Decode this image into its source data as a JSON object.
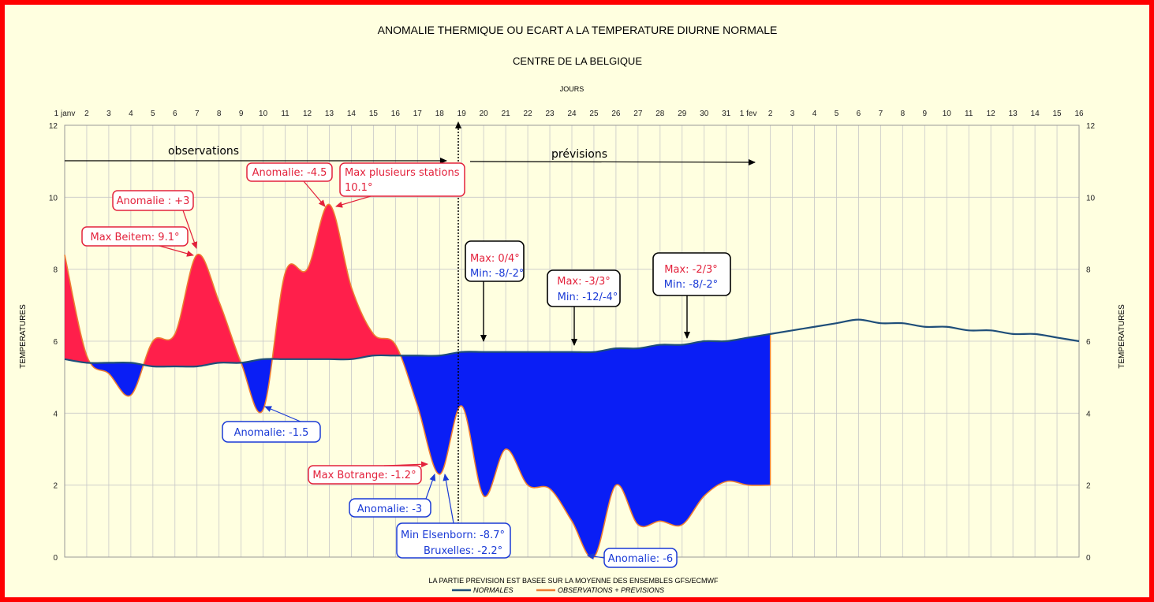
{
  "chart_data": {
    "type": "area",
    "title": "ANOMALIE THERMIQUE OU ECART A LA TEMPERATURE DIURNE NORMALE",
    "subtitle": "CENTRE DE LA BELGIQUE",
    "xlabel": "JOURS",
    "ylabel": "TEMPERATURES",
    "ylim": [
      0,
      12
    ],
    "yticks": [
      0,
      2,
      4,
      6,
      8,
      10,
      12
    ],
    "grid": true,
    "legend_position": "bottom",
    "x_ticks": [
      "1 janv",
      "2",
      "3",
      "4",
      "5",
      "6",
      "7",
      "8",
      "9",
      "10",
      "11",
      "12",
      "13",
      "14",
      "15",
      "16",
      "17",
      "18",
      "19",
      "20",
      "21",
      "22",
      "23",
      "24",
      "25",
      "26",
      "27",
      "28",
      "29",
      "30",
      "31",
      "1 fev",
      "2",
      "3",
      "4",
      "5",
      "6",
      "7",
      "8",
      "9",
      "10",
      "11",
      "12",
      "13",
      "14",
      "15",
      "16"
    ],
    "series": [
      {
        "name": "NORMALES",
        "color": "#1f4e79",
        "x": [
          1,
          2,
          3,
          4,
          5,
          6,
          7,
          8,
          9,
          10,
          11,
          12,
          13,
          14,
          15,
          16,
          17,
          18,
          19,
          20,
          21,
          22,
          23,
          24,
          25,
          26,
          27,
          28,
          29,
          30,
          31,
          32,
          33,
          34,
          35,
          36,
          37,
          38,
          39,
          40,
          41,
          42,
          43,
          44,
          45,
          46,
          47
        ],
        "values": [
          5.5,
          5.4,
          5.4,
          5.4,
          5.3,
          5.3,
          5.3,
          5.4,
          5.4,
          5.5,
          5.5,
          5.5,
          5.5,
          5.5,
          5.6,
          5.6,
          5.6,
          5.6,
          5.7,
          5.7,
          5.7,
          5.7,
          5.7,
          5.7,
          5.7,
          5.8,
          5.8,
          5.9,
          5.9,
          6.0,
          6.0,
          6.1,
          6.2,
          6.3,
          6.4,
          6.5,
          6.6,
          6.5,
          6.5,
          6.4,
          6.4,
          6.3,
          6.3,
          6.2,
          6.2,
          6.1,
          6.0
        ]
      },
      {
        "name": "OBSERVATIONS + PREVISIONS",
        "color": "#ed7d31",
        "x": [
          1,
          2,
          3,
          4,
          5,
          6,
          7,
          8,
          9,
          10,
          11,
          12,
          13,
          14,
          15,
          16,
          17,
          18,
          19,
          20,
          21,
          22,
          23,
          24,
          25,
          26,
          27,
          28,
          29,
          30,
          31,
          32,
          33
        ],
        "values": [
          8.4,
          5.6,
          5.1,
          4.5,
          6.0,
          6.2,
          8.4,
          7.1,
          5.4,
          4.1,
          7.9,
          8.0,
          9.8,
          7.5,
          6.2,
          5.9,
          4.2,
          2.3,
          4.2,
          1.7,
          3.0,
          2.0,
          1.9,
          1.0,
          0.0,
          2.0,
          0.9,
          1.0,
          0.9,
          1.7,
          2.1,
          2.0,
          2.0
        ]
      }
    ],
    "annotations": {
      "observations": "observations",
      "previsions": "prévisions",
      "a1": "Anomalie : +3",
      "a2": "Max Beitem: 9.1°",
      "a3": "Anomalie: -4.5",
      "a4_l1": "Max plusieurs stations",
      "a4_l2": "10.1°",
      "a5": "Anomalie: -1.5",
      "a6": "Max Botrange: -1.2°",
      "a7": "Anomalie: -3",
      "a8_l1": "Min Elsenborn: -8.7°",
      "a8_l2": "Bruxelles: -2.2°",
      "a9": "Anomalie: -6",
      "b1_max": "Max: 0/4°",
      "b1_min": "Min: -8/-2°",
      "b2_max": "Max: -3/3°",
      "b2_min": "Min: -12/-4°",
      "b3_max": "Max: -2/3°",
      "b3_min": "Min: -8/-2°"
    },
    "footnote": "LA PARTIE PREVISION EST BASEE SUR LA MOYENNE DES ENSEMBLES GFS/ECMWF",
    "colors": {
      "warm_fill": "#ff1f4b",
      "cold_fill": "#0a1ef5",
      "warm_text": "#e3223c",
      "cold_text": "#1a3ad6",
      "background": "#ffffe0",
      "border": "#ff0000"
    }
  }
}
